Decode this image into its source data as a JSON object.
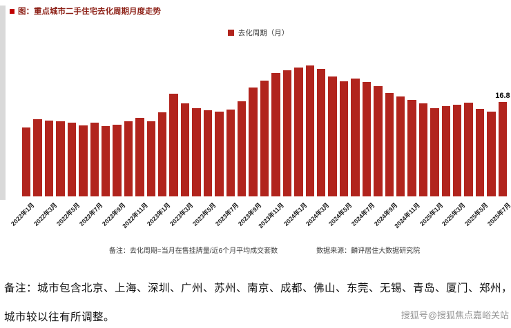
{
  "page": {
    "accent_color": "#c00000",
    "note_line1": "备注：城市包含北京、上海、深圳、广州、苏州、南京、成都、佛山、东莞、无锡、青岛、厦门、郑州，",
    "note_line2": "城市较以往有所调整。",
    "watermark": "搜狐号@搜狐焦点嘉峪关站"
  },
  "header": {
    "title": "图：重点城市二手住宅去化周期月度走势"
  },
  "chart_data": {
    "type": "bar",
    "title": "重点城市二手住宅去化周期月度走势",
    "legend": "去化周期（月）",
    "bar_color": "#b1241d",
    "ylim": [
      0,
      24
    ],
    "x_tick_every": 2,
    "grid": false,
    "legend_position": "top-center",
    "annotation": {
      "index": 42,
      "label": "16.8"
    },
    "footnote_left": "备注：去化周期=当月在售挂牌量/近6个月平均成交套数",
    "footnote_right": "数据来源：麟评居住大数据研究院",
    "categories": [
      "2022年1月",
      "2022年2月",
      "2022年3月",
      "2022年4月",
      "2022年5月",
      "2022年6月",
      "2022年7月",
      "2022年8月",
      "2022年9月",
      "2022年10月",
      "2022年11月",
      "2022年12月",
      "2023年1月",
      "2023年2月",
      "2023年3月",
      "2023年4月",
      "2023年5月",
      "2023年6月",
      "2023年7月",
      "2023年8月",
      "2023年9月",
      "2023年10月",
      "2023年11月",
      "2023年12月",
      "2024年1月",
      "2024年2月",
      "2024年3月",
      "2024年4月",
      "2024年5月",
      "2024年6月",
      "2024年7月",
      "2024年8月",
      "2024年9月",
      "2024年10月",
      "2024年11月",
      "2024年12月",
      "2025年1月",
      "2025年2月",
      "2025年3月",
      "2025年4月",
      "2025年5月",
      "2025年6月",
      "2025年7月"
    ],
    "values": [
      12.2,
      13.7,
      13.5,
      13.3,
      13.1,
      12.6,
      13.1,
      12.5,
      12.7,
      13.4,
      14.0,
      13.4,
      14.9,
      18.2,
      16.5,
      15.7,
      15.3,
      15.1,
      15.4,
      16.9,
      19.3,
      20.6,
      21.9,
      22.4,
      22.9,
      23.3,
      22.7,
      21.3,
      20.5,
      20.9,
      20.3,
      19.6,
      18.4,
      17.7,
      17.1,
      16.5,
      15.7,
      16.0,
      16.3,
      16.7,
      15.5,
      15.1,
      16.8
    ]
  }
}
